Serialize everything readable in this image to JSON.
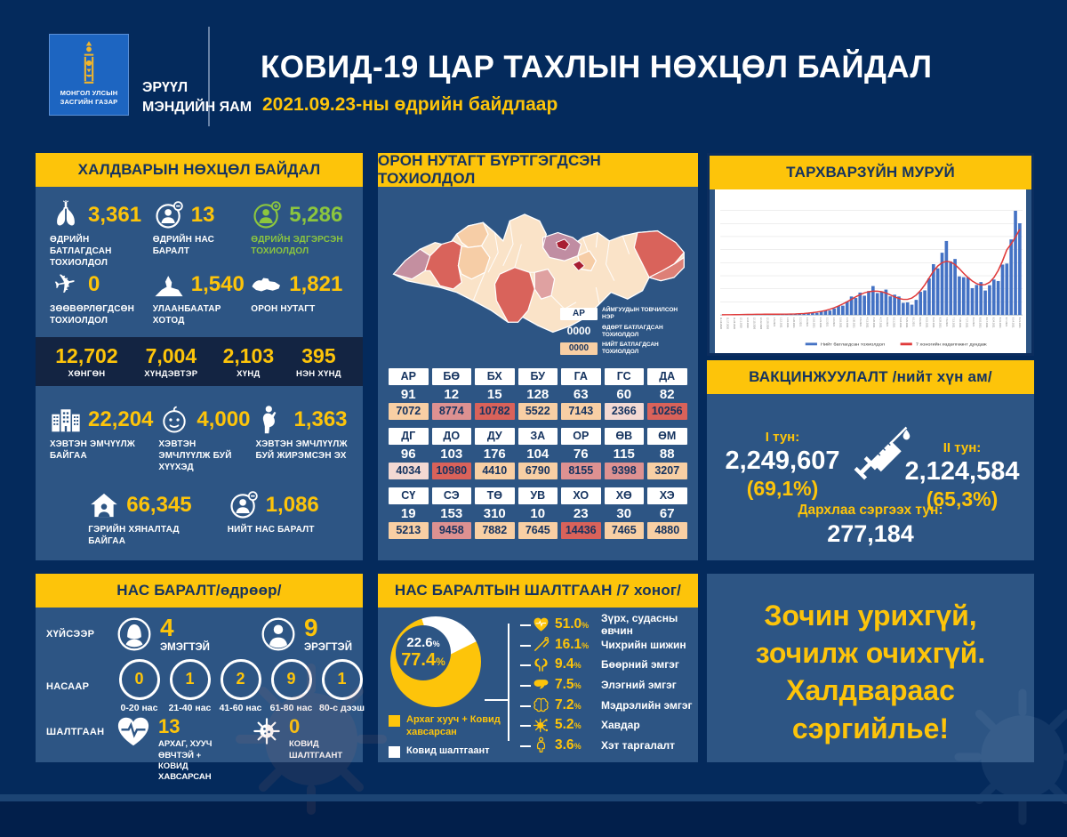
{
  "colors": {
    "background": "#042a5c",
    "panel": "#2d5584",
    "band": "#132442",
    "yellow": "#fdc40a",
    "navy_text": "#15335f",
    "green": "#8cc63e",
    "bar_blue": "#4472c4",
    "line_red": "#e03a3a",
    "cell_peach": "#f8cfa4",
    "cell_rose": "#dd9191",
    "cell_red": "#d9625a",
    "cell_pale": "#f3d9d3"
  },
  "header": {
    "logo_line1": "МОНГОЛ УЛСЫН",
    "logo_line2": "ЗАСГИЙН ГАЗАР",
    "ministry_line1": "ЭРҮҮЛ",
    "ministry_line2": "МЭНДИЙН ЯАМ",
    "title": "КОВИД-19 ЦАР ТАХЛЫН НӨХЦӨЛ БАЙДАЛ",
    "subtitle": "2021.09.23-ны өдрийн байдлаар"
  },
  "infection": {
    "title": "ХАЛДВАРЫН НӨХЦӨЛ БАЙДАЛ",
    "stats_top": [
      {
        "icon": "lungs-icon",
        "value": "3,361",
        "label": "ӨДРИЙН БАТЛАГДСАН ТОХИОЛДОЛ",
        "color": "yellow"
      },
      {
        "icon": "death-icon",
        "value": "13",
        "label": "ӨДРИЙН НАС БАРАЛТ",
        "color": "yellow"
      },
      {
        "icon": "recovered-icon",
        "value": "5,286",
        "label": "ӨДРИЙН ЭДГЭРСЭН ТОХИОЛДОЛ",
        "color": "green"
      },
      {
        "icon": "airplane-icon",
        "value": "0",
        "label": "ЗӨӨВӨРЛӨГДСӨН ТОХИОЛДОЛ",
        "color": "yellow"
      },
      {
        "icon": "monument-icon",
        "value": "1,540",
        "label": "УЛААНБААТАР ХОТОД",
        "color": "yellow"
      },
      {
        "icon": "mongolia-icon",
        "value": "1,821",
        "label": "ОРОН НУТАГТ",
        "color": "yellow"
      }
    ],
    "severity": [
      {
        "value": "12,702",
        "label": "ХӨНГӨН"
      },
      {
        "value": "7,004",
        "label": "ХҮНДЭВТЭР"
      },
      {
        "value": "2,103",
        "label": "ХҮНД"
      },
      {
        "value": "395",
        "label": "НЭН ХҮНД"
      }
    ],
    "stats_bottom": [
      {
        "icon": "hospital-icon",
        "value": "22,204",
        "label": "ХЭВТЭН ЭМЧҮҮЛЖ БАЙГАА",
        "color": "yellow"
      },
      {
        "icon": "baby-icon",
        "value": "4,000",
        "label": "ХЭВТЭН ЭМЧЛҮҮЛЖ БУЙ ХҮҮХЭД",
        "color": "yellow"
      },
      {
        "icon": "pregnant-icon",
        "value": "1,363",
        "label": "ХЭВТЭН ЭМЧЛҮҮЛЖ БУЙ ЖИРЭМСЭН ЭХ",
        "color": "yellow"
      }
    ],
    "stats_last": [
      {
        "icon": "home-icon",
        "value": "66,345",
        "label": "ГЭРИЙН ХЯНАЛТАД БАЙГАА",
        "color": "yellow"
      },
      {
        "icon": "total-death-icon",
        "value": "1,086",
        "label": "НИЙТ НАС БАРАЛТ",
        "color": "yellow"
      }
    ]
  },
  "deaths_daily": {
    "title": "НАС БАРАЛТ/өдрөөр/",
    "gender_label": "ХҮЙСЭЭР",
    "gender": [
      {
        "icon": "female-icon",
        "value": "4",
        "label": "ЭМЭГТЭЙ"
      },
      {
        "icon": "male-icon",
        "value": "9",
        "label": "ЭРЭГТЭЙ"
      }
    ],
    "age_label": "НАСААР",
    "age": [
      {
        "value": "0",
        "label": "0-20 нас"
      },
      {
        "value": "1",
        "label": "21-40 нас"
      },
      {
        "value": "2",
        "label": "41-60 нас"
      },
      {
        "value": "9",
        "label": "61-80 нас"
      },
      {
        "value": "1",
        "label": "80-с дээш"
      }
    ],
    "cause_label": "ШАЛТГААН",
    "cause": [
      {
        "icon": "heart-pulse-icon",
        "value": "13",
        "label": "АРХАГ, ХУУЧ ӨВЧТЭЙ + КОВИД ХАВСАРСАН"
      },
      {
        "icon": "virus-icon",
        "value": "0",
        "label": "КОВИД ШАЛТГААНТ"
      }
    ]
  },
  "regions": {
    "title": "ОРОН НУТАГТ БҮРТГЭГДСЭН ТОХИОЛДОЛ",
    "legend": [
      {
        "key": "АР",
        "style": "white",
        "label": "АЙМГУУДЫН ТОВЧИЛСОН НЭР"
      },
      {
        "key": "0000",
        "style": "none",
        "label": "ӨДӨРТ БАТЛАГДСАН ТОХИОЛДОЛ"
      },
      {
        "key": "0000",
        "style": "peach",
        "label": "НИЙТ БАТЛАГДСАН ТОХИОЛДОЛ"
      }
    ],
    "groups": [
      [
        {
          "abbr": "АР",
          "daily": "91",
          "total": "7072",
          "level": "peach"
        },
        {
          "abbr": "БӨ",
          "daily": "12",
          "total": "8774",
          "level": "rose"
        },
        {
          "abbr": "БХ",
          "daily": "15",
          "total": "10782",
          "level": "red"
        },
        {
          "abbr": "БУ",
          "daily": "128",
          "total": "5522",
          "level": "peach"
        },
        {
          "abbr": "ГА",
          "daily": "63",
          "total": "7143",
          "level": "peach"
        },
        {
          "abbr": "ГС",
          "daily": "60",
          "total": "2366",
          "level": "pale"
        },
        {
          "abbr": "ДА",
          "daily": "82",
          "total": "10256",
          "level": "red"
        }
      ],
      [
        {
          "abbr": "ДГ",
          "daily": "96",
          "total": "4034",
          "level": "pale"
        },
        {
          "abbr": "ДО",
          "daily": "103",
          "total": "10980",
          "level": "red"
        },
        {
          "abbr": "ДУ",
          "daily": "176",
          "total": "4410",
          "level": "peach"
        },
        {
          "abbr": "ЗА",
          "daily": "104",
          "total": "6790",
          "level": "peach"
        },
        {
          "abbr": "ОР",
          "daily": "76",
          "total": "8155",
          "level": "rose"
        },
        {
          "abbr": "ӨВ",
          "daily": "115",
          "total": "9398",
          "level": "rose"
        },
        {
          "abbr": "ӨМ",
          "daily": "88",
          "total": "3207",
          "level": "peach"
        }
      ],
      [
        {
          "abbr": "СҮ",
          "daily": "19",
          "total": "5213",
          "level": "peach"
        },
        {
          "abbr": "СЭ",
          "daily": "153",
          "total": "9458",
          "level": "rose"
        },
        {
          "abbr": "ТӨ",
          "daily": "310",
          "total": "7882",
          "level": "peach"
        },
        {
          "abbr": "УВ",
          "daily": "10",
          "total": "7645",
          "level": "peach"
        },
        {
          "abbr": "ХО",
          "daily": "23",
          "total": "14436",
          "level": "red"
        },
        {
          "abbr": "ХӨ",
          "daily": "30",
          "total": "7465",
          "level": "peach"
        },
        {
          "abbr": "ХЭ",
          "daily": "67",
          "total": "4880",
          "level": "peach"
        }
      ]
    ]
  },
  "curve": {
    "title": "ТАРХВАРЗҮЙН МУРУЙ",
    "legend": [
      {
        "label": "Нийт батлагдсан тохиолдол",
        "color": "#4472c4"
      },
      {
        "label": "7 хоногийн хөдөлгөөнт дундаж",
        "color": "#e03a3a"
      }
    ]
  },
  "vaccine": {
    "title": "ВАКЦИНЖУУЛАЛТ /нийт хүн ам/",
    "dose1_label": "I тун:",
    "dose1_value": "2,249,607",
    "dose1_pct": "(69,1%)",
    "dose2_label": "II тун:",
    "dose2_value": "2,124,584",
    "dose2_pct": "(65,3%)",
    "booster_label": "Дархлаа сэргээх тун:",
    "booster_value": "277,184"
  },
  "death_cause": {
    "title": "НАС БАРАЛТЫН ШАЛТГААН /7 хоног/",
    "covid_pct": "22.6",
    "comorbid_pct": "77.4",
    "legend": [
      {
        "swatch": "yellow",
        "label": "Архаг хууч + Ковид хавсарсан"
      },
      {
        "swatch": "white",
        "label": "Ковид шалтгаант"
      }
    ],
    "items": [
      {
        "icon": "heart-icon",
        "pct": "51.0",
        "label": "Зүрх, судасны өвчин"
      },
      {
        "icon": "diabetes-icon",
        "pct": "16.1",
        "label": "Чихрийн шижин"
      },
      {
        "icon": "kidney-icon",
        "pct": "9.4",
        "label": "Бөөрний эмгэг"
      },
      {
        "icon": "liver-icon",
        "pct": "7.5",
        "label": "Элэгний эмгэг"
      },
      {
        "icon": "brain-icon",
        "pct": "7.2",
        "label": "Мэдрэлийн эмгэг"
      },
      {
        "icon": "cancer-icon",
        "pct": "5.2",
        "label": "Хавдар"
      },
      {
        "icon": "obesity-icon",
        "pct": "3.6",
        "label": "Хэт таргалалт"
      }
    ]
  },
  "message": {
    "lines": [
      "Зочин урихгүй,",
      "зочилж очихгүй.",
      "Халдвараас",
      "сэргийлье!"
    ]
  },
  "chart_data": [
    {
      "type": "bar",
      "title": "ТАРХВАРЗҮЙН МУРУЙ",
      "x_range": [
        "2020.11",
        "2021.09.23"
      ],
      "ylim": [
        0,
        4500
      ],
      "grid": true,
      "legend_position": "bottom",
      "series": [
        {
          "name": "Нийт батлагдсан тохиолдол",
          "type": "bar",
          "color": "#4472c4",
          "values": [
            5,
            8,
            10,
            12,
            15,
            18,
            20,
            25,
            28,
            30,
            32,
            35,
            30,
            28,
            25,
            30,
            35,
            40,
            45,
            50,
            60,
            80,
            100,
            130,
            160,
            200,
            250,
            300,
            400,
            500,
            600,
            700,
            800,
            900,
            950,
            1000,
            980,
            900,
            850,
            800,
            750,
            600,
            500,
            450,
            480,
            600,
            800,
            1100,
            1400,
            1700,
            2000,
            2300,
            2400,
            2200,
            2000,
            1800,
            1500,
            1300,
            1200,
            1150,
            1100,
            1050,
            1100,
            1150,
            1400,
            1800,
            2400,
            3000,
            3600,
            4100
          ]
        },
        {
          "name": "7 хоногийн хөдөлгөөнт дундаж",
          "type": "line",
          "color": "#e03a3a",
          "derived": "moving_average_of_bar_series"
        }
      ]
    },
    {
      "type": "pie",
      "title": "НАС БАРАЛТЫН ШАЛТГААН /7 хоног/",
      "slices": [
        {
          "label": "Архаг хууч + Ковид хавсарсан",
          "value": 77.4,
          "color": "#fdc40a"
        },
        {
          "label": "Ковид шалтгаант",
          "value": 22.6,
          "color": "#ffffff"
        }
      ]
    }
  ]
}
